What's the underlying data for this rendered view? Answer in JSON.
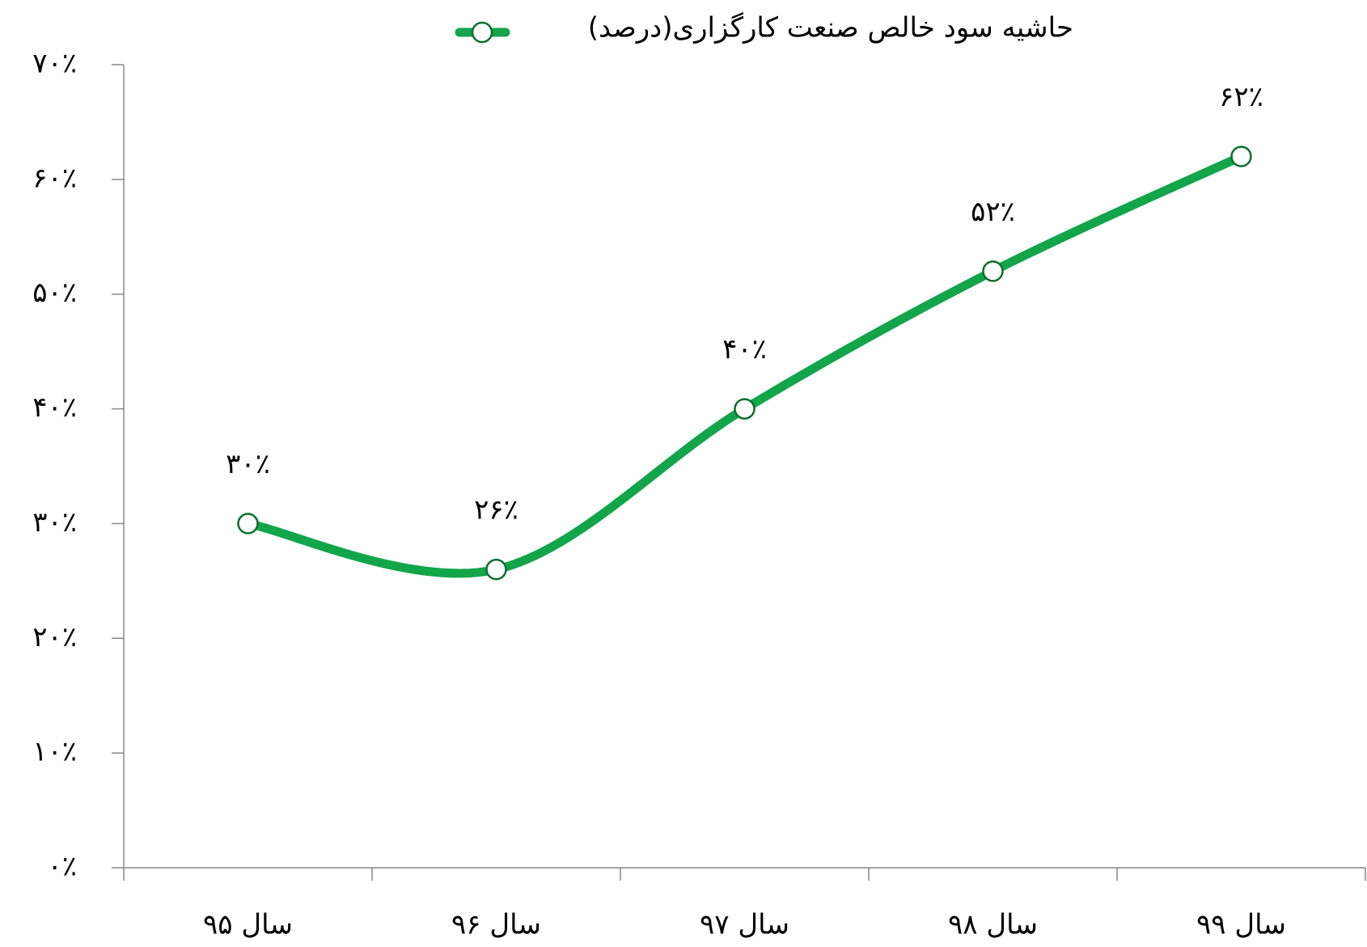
{
  "chart_data": {
    "type": "line",
    "categories": [
      "سال ۹۵",
      "سال ۹۶",
      "سال ۹۷",
      "سال ۹۸",
      "سال ۹۹"
    ],
    "series": [
      {
        "name": "حاشیه سود خالص صنعت کارگزاری(درصد)",
        "color": "#12a54a",
        "values": [
          30,
          26,
          40,
          52,
          62
        ],
        "value_labels": [
          "۳۰٪",
          "۲۶٪",
          "۴۰٪",
          "۵۲٪",
          "۶۲٪"
        ]
      }
    ],
    "ylim": [
      0,
      70
    ],
    "yticks": [
      {
        "value": 0,
        "label": "۰٪"
      },
      {
        "value": 10,
        "label": "۱۰٪"
      },
      {
        "value": 20,
        "label": "۲۰٪"
      },
      {
        "value": 30,
        "label": "۳۰٪"
      },
      {
        "value": 40,
        "label": "۴۰٪"
      },
      {
        "value": 50,
        "label": "۵۰٪"
      },
      {
        "value": 60,
        "label": "۶۰٪"
      },
      {
        "value": 70,
        "label": "۷۰٪"
      }
    ],
    "smooth": true,
    "legend": "top"
  }
}
